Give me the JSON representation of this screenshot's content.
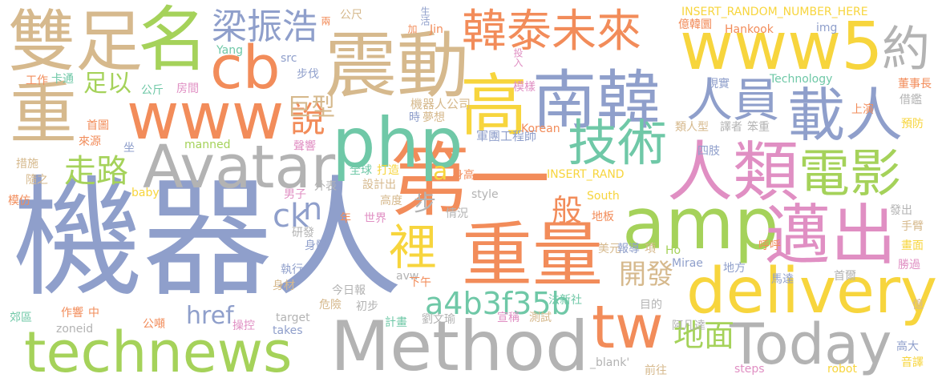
{
  "palette": {
    "tan": "#d6b98d",
    "orange": "#f28c5a",
    "green": "#a5d25a",
    "blue": "#8f9fcb",
    "pink": "#e08fc3",
    "yellow": "#f7d53d",
    "teal": "#6fc8a7",
    "gray": "#b3b3b3"
  },
  "words": [
    {
      "text": "機器人",
      "color": "blue"
    },
    {
      "text": "Method",
      "color": "gray"
    },
    {
      "text": "technews",
      "color": "green"
    },
    {
      "text": "第一",
      "color": "orange"
    },
    {
      "text": "重量",
      "color": "orange"
    },
    {
      "text": "delivery",
      "color": "yellow"
    },
    {
      "text": "amp",
      "color": "green"
    },
    {
      "text": "php",
      "color": "teal"
    },
    {
      "text": "震動",
      "color": "tan"
    },
    {
      "text": "www",
      "color": "orange"
    },
    {
      "text": "Avatar",
      "color": "gray"
    },
    {
      "text": "www5",
      "color": "yellow"
    },
    {
      "text": "高",
      "color": "yellow"
    },
    {
      "text": "南韓",
      "color": "blue"
    },
    {
      "text": "人類",
      "color": "pink"
    },
    {
      "text": "Today",
      "color": "gray"
    },
    {
      "text": "雙足",
      "color": "tan"
    },
    {
      "text": "名",
      "color": "green"
    },
    {
      "text": "重",
      "color": "tan"
    },
    {
      "text": "cb",
      "color": "orange"
    },
    {
      "text": "邁出",
      "color": "pink"
    },
    {
      "text": "tw",
      "color": "orange"
    },
    {
      "text": "載人",
      "color": "blue"
    },
    {
      "text": "電影",
      "color": "green"
    },
    {
      "text": "技術",
      "color": "teal"
    },
    {
      "text": "韓泰未來",
      "color": "orange"
    },
    {
      "text": "人員",
      "color": "blue"
    },
    {
      "text": "約",
      "color": "gray"
    },
    {
      "text": "梁振浩",
      "color": "blue"
    },
    {
      "text": "裡",
      "color": "yellow"
    },
    {
      "text": "a4b3f35b",
      "color": "teal"
    },
    {
      "text": "地面",
      "color": "green"
    },
    {
      "text": "走路",
      "color": "green"
    },
    {
      "text": "說",
      "color": "orange"
    },
    {
      "text": "巨型",
      "color": "tan"
    },
    {
      "text": "足以",
      "color": "green"
    },
    {
      "text": "ck",
      "color": "blue"
    },
    {
      "text": "n",
      "color": "blue"
    },
    {
      "text": "href",
      "color": "blue"
    },
    {
      "text": "開發",
      "color": "tan"
    },
    {
      "text": "般",
      "color": "orange"
    },
    {
      "text": "a",
      "color": "yellow"
    },
    {
      "text": "步",
      "color": "gray"
    },
    {
      "text": "機器人公司",
      "color": "tan"
    },
    {
      "text": "軍團工程師",
      "color": "blue"
    },
    {
      "text": "夢想",
      "color": "tan"
    },
    {
      "text": "時",
      "color": "blue"
    },
    {
      "text": "INSERT_RANDOM_NUMBER_HERE",
      "color": "yellow"
    },
    {
      "text": "INSERT_RAND",
      "color": "yellow"
    },
    {
      "text": "生活",
      "color": "blue"
    },
    {
      "text": "兩",
      "color": "orange"
    },
    {
      "text": "公尺",
      "color": "tan"
    },
    {
      "text": "加",
      "color": "orange"
    },
    {
      "text": "Jin",
      "color": "orange"
    },
    {
      "text": "Yang",
      "color": "teal"
    },
    {
      "text": "src",
      "color": "blue"
    },
    {
      "text": "img",
      "color": "blue"
    },
    {
      "text": "億韓圜",
      "color": "orange"
    },
    {
      "text": "Hankook",
      "color": "orange"
    },
    {
      "text": "Technology",
      "color": "teal"
    },
    {
      "text": "投入",
      "color": "pink"
    },
    {
      "text": "模樣",
      "color": "pink"
    },
    {
      "text": "現實",
      "color": "blue"
    },
    {
      "text": "董事長",
      "color": "orange"
    },
    {
      "text": "借鑑",
      "color": "gray"
    },
    {
      "text": "上演",
      "color": "orange"
    },
    {
      "text": "預防",
      "color": "yellow"
    },
    {
      "text": "工作",
      "color": "orange"
    },
    {
      "text": "卡通",
      "color": "teal"
    },
    {
      "text": "公斤",
      "color": "teal"
    },
    {
      "text": "房間",
      "color": "pink"
    },
    {
      "text": "步伐",
      "color": "blue"
    },
    {
      "text": "首圖",
      "color": "orange"
    },
    {
      "text": "來源",
      "color": "orange"
    },
    {
      "text": "坐",
      "color": "blue"
    },
    {
      "text": "措施",
      "color": "tan"
    },
    {
      "text": "隨之",
      "color": "tan"
    },
    {
      "text": "模仿",
      "color": "orange"
    },
    {
      "text": "baby",
      "color": "yellow"
    },
    {
      "text": "manned",
      "color": "green"
    },
    {
      "text": "聲響",
      "color": "pink"
    },
    {
      "text": "全球",
      "color": "teal"
    },
    {
      "text": "打造",
      "color": "yellow"
    },
    {
      "text": "身高",
      "color": "orange"
    },
    {
      "text": "Korean",
      "color": "orange"
    },
    {
      "text": "類人型",
      "color": "tan"
    },
    {
      "text": "譯者",
      "color": "gray"
    },
    {
      "text": "笨重",
      "color": "gray"
    },
    {
      "text": "四肢",
      "color": "blue"
    },
    {
      "text": "設計出",
      "color": "tan"
    },
    {
      "text": "外表",
      "color": "gray"
    },
    {
      "text": "男子",
      "color": "pink"
    },
    {
      "text": "高度",
      "color": "tan"
    },
    {
      "text": "style",
      "color": "gray"
    },
    {
      "text": "South",
      "color": "yellow"
    },
    {
      "text": "情況",
      "color": "gray"
    },
    {
      "text": "世界",
      "color": "pink"
    },
    {
      "text": "年",
      "color": "orange"
    },
    {
      "text": "地板",
      "color": "orange"
    },
    {
      "text": "研發",
      "color": "gray"
    },
    {
      "text": "身體",
      "color": "blue"
    },
    {
      "text": "執行",
      "color": "blue"
    },
    {
      "text": "身材",
      "color": "tan"
    },
    {
      "text": "今日報",
      "color": "gray"
    },
    {
      "text": "avw",
      "color": "gray"
    },
    {
      "text": "下午",
      "color": "orange"
    },
    {
      "text": "美元",
      "color": "tan"
    },
    {
      "text": "報導",
      "color": "blue"
    },
    {
      "text": "項",
      "color": "tan"
    },
    {
      "text": "Ho",
      "color": "green"
    },
    {
      "text": "Mirae",
      "color": "blue"
    },
    {
      "text": "地方",
      "color": "blue"
    },
    {
      "text": "呼呼",
      "color": "orange"
    },
    {
      "text": "發出",
      "color": "gray"
    },
    {
      "text": "手臂",
      "color": "tan"
    },
    {
      "text": "畫面",
      "color": "yellow"
    },
    {
      "text": "勝過",
      "color": "pink"
    },
    {
      "text": "首爾",
      "color": "gray"
    },
    {
      "text": "馬達",
      "color": "blue"
    },
    {
      "text": "億",
      "color": "tan"
    },
    {
      "text": "郊區",
      "color": "teal"
    },
    {
      "text": "作響",
      "color": "orange"
    },
    {
      "text": "中",
      "color": "orange"
    },
    {
      "text": "危險",
      "color": "tan"
    },
    {
      "text": "初步",
      "color": "gray"
    },
    {
      "text": "法新社",
      "color": "teal"
    },
    {
      "text": "目的",
      "color": "gray"
    },
    {
      "text": "阿凡達",
      "color": "gray"
    },
    {
      "text": "公噸",
      "color": "orange"
    },
    {
      "text": "操控",
      "color": "pink"
    },
    {
      "text": "target",
      "color": "gray"
    },
    {
      "text": "takes",
      "color": "blue"
    },
    {
      "text": "zoneid",
      "color": "gray"
    },
    {
      "text": "計畫",
      "color": "teal"
    },
    {
      "text": "劉文瑜",
      "color": "gray"
    },
    {
      "text": "宣稱",
      "color": "pink"
    },
    {
      "text": "測試",
      "color": "tan"
    },
    {
      "text": "_blank'",
      "color": "gray"
    },
    {
      "text": "前往",
      "color": "tan"
    },
    {
      "text": "steps",
      "color": "pink"
    },
    {
      "text": "robot",
      "color": "yellow"
    },
    {
      "text": "高大",
      "color": "blue"
    },
    {
      "text": "音譯",
      "color": "yellow"
    }
  ]
}
